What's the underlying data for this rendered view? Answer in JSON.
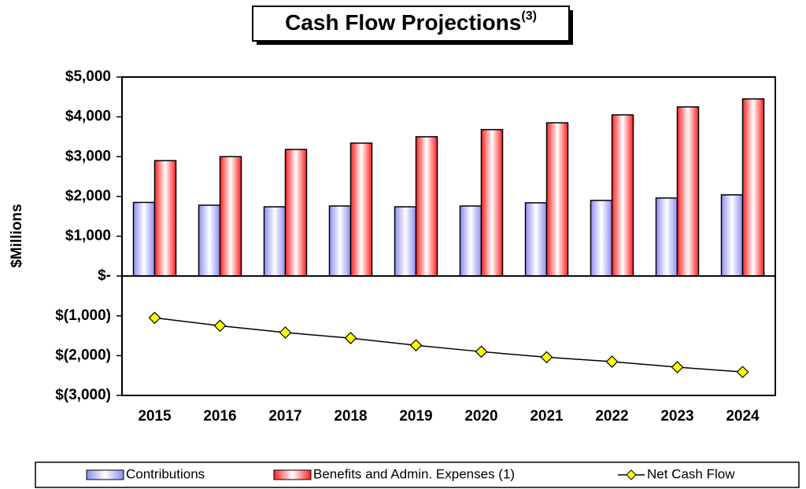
{
  "chart_data": {
    "type": "bar",
    "title": "Cash Flow Projections",
    "title_superscript": "(3)",
    "y_label": "$Millions",
    "categories": [
      "2015",
      "2016",
      "2017",
      "2018",
      "2019",
      "2020",
      "2021",
      "2022",
      "2023",
      "2024"
    ],
    "series": [
      {
        "name": "Contributions",
        "type": "bar",
        "color": "#8c8cf0",
        "values": [
          1850,
          1780,
          1740,
          1760,
          1740,
          1760,
          1840,
          1900,
          1960,
          2040
        ]
      },
      {
        "name": "Benefits and Admin. Expenses (1)",
        "type": "bar",
        "color": "#ff2020",
        "values": [
          2900,
          3000,
          3180,
          3340,
          3500,
          3680,
          3850,
          4050,
          4250,
          4450
        ]
      },
      {
        "name": "Net Cash Flow",
        "type": "line",
        "color": "#000000",
        "marker_color": "#ffff00",
        "values": [
          -1050,
          -1250,
          -1420,
          -1560,
          -1740,
          -1900,
          -2040,
          -2150,
          -2290,
          -2410
        ]
      }
    ],
    "ylim": [
      -3000,
      5000
    ],
    "yticks": [
      {
        "value": -3000,
        "label": "$(3,000)"
      },
      {
        "value": -2000,
        "label": "$(2,000)"
      },
      {
        "value": -1000,
        "label": "$(1,000)"
      },
      {
        "value": 0,
        "label": "$-"
      },
      {
        "value": 1000,
        "label": "$1,000"
      },
      {
        "value": 2000,
        "label": "$2,000"
      },
      {
        "value": 3000,
        "label": "$3,000"
      },
      {
        "value": 4000,
        "label": "$4,000"
      },
      {
        "value": 5000,
        "label": "$5,000"
      }
    ],
    "legend": "bottom"
  }
}
